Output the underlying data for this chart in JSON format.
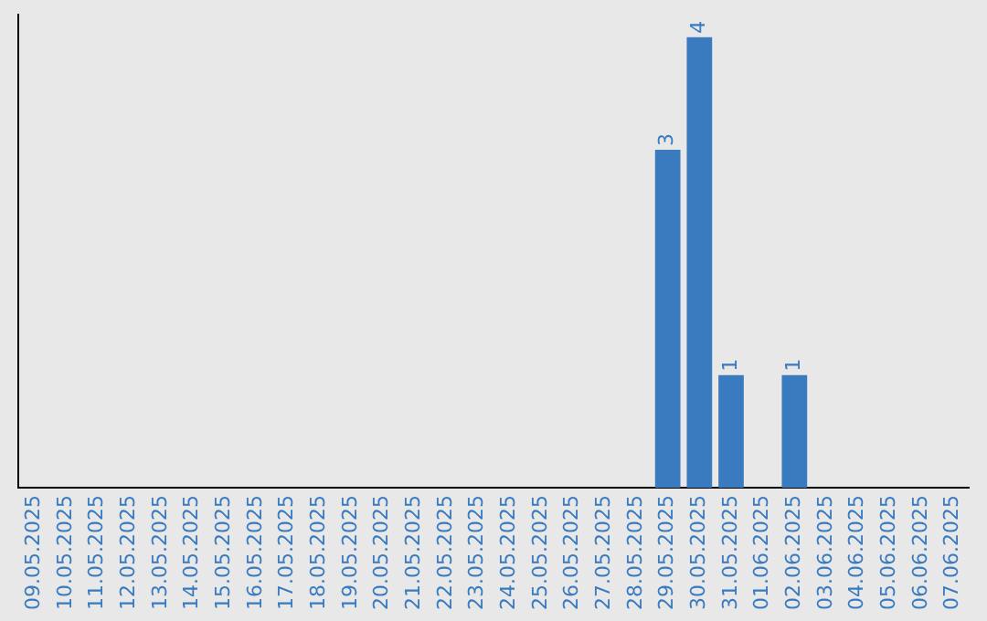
{
  "chart_data": {
    "type": "bar",
    "categories": [
      "09.05.2025",
      "10.05.2025",
      "11.05.2025",
      "12.05.2025",
      "13.05.2025",
      "14.05.2025",
      "15.05.2025",
      "16.05.2025",
      "17.05.2025",
      "18.05.2025",
      "19.05.2025",
      "20.05.2025",
      "21.05.2025",
      "22.05.2025",
      "23.05.2025",
      "24.05.2025",
      "25.05.2025",
      "26.05.2025",
      "27.05.2025",
      "28.05.2025",
      "29.05.2025",
      "30.05.2025",
      "31.05.2025",
      "01.06.2025",
      "02.06.2025",
      "03.06.2025",
      "04.06.2025",
      "05.06.2025",
      "06.06.2025",
      "07.06.2025"
    ],
    "values": [
      null,
      null,
      null,
      null,
      null,
      null,
      null,
      null,
      null,
      null,
      null,
      null,
      null,
      null,
      null,
      null,
      null,
      null,
      null,
      null,
      3,
      4,
      1,
      null,
      1,
      null,
      null,
      null,
      null,
      null
    ],
    "color": "#3a7bc0",
    "ylim": [
      0,
      4.2
    ],
    "data_labels": true,
    "grid": false,
    "legend": false,
    "tick_labels": "x"
  }
}
